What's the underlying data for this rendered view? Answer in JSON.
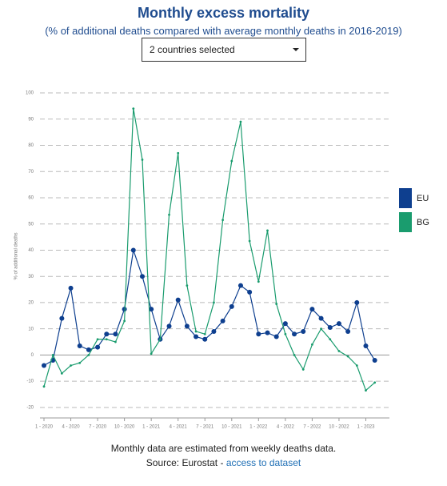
{
  "chart_data": {
    "type": "line",
    "title": "Monthly excess mortality",
    "subtitle": "(% of additional deaths compared with average monthly deaths in 2016-2019)",
    "dropdown": "2 countries selected",
    "y_label": "% of additional deaths",
    "note": "Monthly data are estimated from weekly deaths data.",
    "source": "Source: Eurostat -",
    "source_link": "access to dataset",
    "categories": [
      "1 - 2020",
      null,
      null,
      "4 - 2020",
      null,
      null,
      "7 - 2020",
      null,
      null,
      "10 - 2020",
      null,
      null,
      "1 - 2021",
      null,
      null,
      "4 - 2021",
      null,
      null,
      "7 - 2021",
      null,
      null,
      "10 - 2021",
      null,
      null,
      "1 - 2022",
      null,
      null,
      "4 - 2022",
      null,
      null,
      "7 - 2022",
      null,
      null,
      "10 - 2022",
      null,
      null,
      "1 - 2023",
      null
    ],
    "series": [
      {
        "name": "EU",
        "color": "#0e3f8f",
        "values": [
          -4,
          -2,
          14,
          25.5,
          3.5,
          2,
          3,
          8,
          8,
          17.5,
          40,
          30,
          17.5,
          6,
          11,
          21,
          11,
          7,
          6,
          9,
          13,
          18.5,
          26.5,
          24,
          8,
          8.5,
          7,
          12,
          8,
          9,
          17.5,
          14,
          10.5,
          12,
          9,
          20,
          3.5,
          -2
        ]
      },
      {
        "name": "BG",
        "color": "#1a9c6e",
        "values": [
          -12,
          0,
          -7,
          -4,
          -3,
          0,
          6,
          6,
          5,
          13,
          94,
          74.5,
          0.5,
          6,
          53.5,
          77,
          26.5,
          9,
          8,
          20,
          51.5,
          74,
          89,
          43.5,
          28,
          47.5,
          19.5,
          8,
          0,
          -5.5,
          4,
          10,
          6,
          1.5,
          -0.5,
          -4,
          -13.5,
          -10.5
        ]
      }
    ],
    "ylim": [
      -24,
      100
    ],
    "yticks": [
      -20,
      -10,
      0,
      10,
      20,
      30,
      40,
      50,
      60,
      70,
      80,
      90,
      100
    ],
    "grid": true
  }
}
